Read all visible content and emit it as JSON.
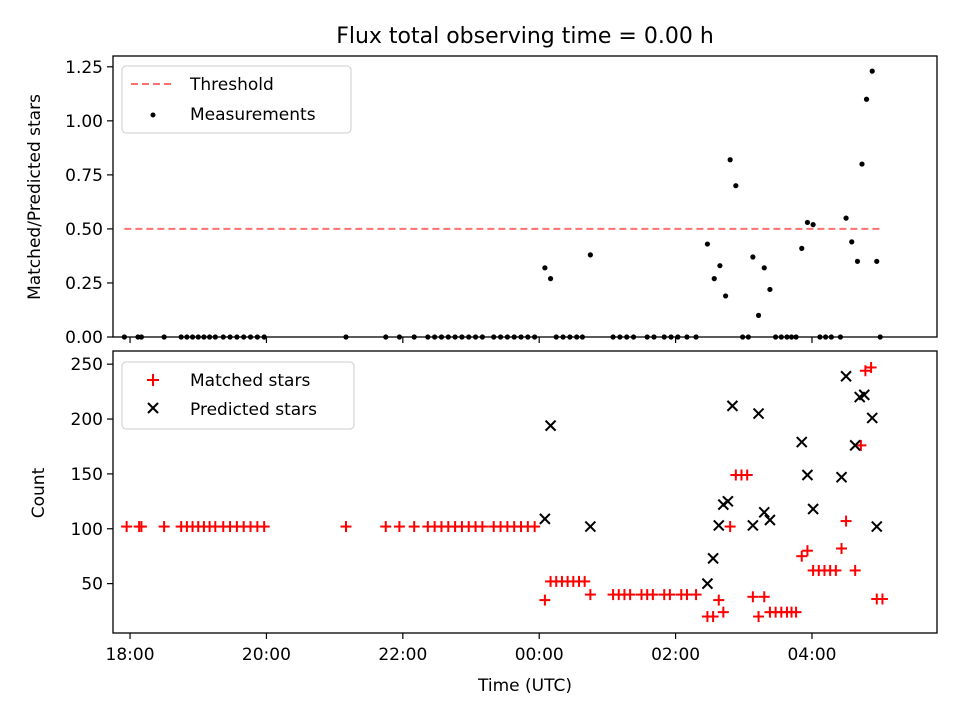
{
  "title": "Flux total observing time = 0.00 h",
  "xlabel": "Time (UTC)",
  "chart_data": [
    {
      "type": "scatter",
      "ylabel": "Matched/Predicted stars",
      "ylim": [
        0,
        1.3
      ],
      "yticks": [
        "0.00",
        "0.25",
        "0.50",
        "0.75",
        "1.00",
        "1.25"
      ],
      "xlim": [
        "17:45",
        "05:50"
      ],
      "legend_position": "top-left",
      "threshold": {
        "name": "Threshold",
        "value": 0.5,
        "x": [
          "17:55",
          "05:00"
        ],
        "color": "#ff7070",
        "style": "dashed"
      },
      "series": [
        {
          "name": "Measurements",
          "marker": "dot",
          "color": "#000000",
          "points": [
            [
              "17:55",
              0
            ],
            [
              "18:07",
              0
            ],
            [
              "18:10",
              0
            ],
            [
              "18:30",
              0
            ],
            [
              "18:45",
              0
            ],
            [
              "18:50",
              0
            ],
            [
              "18:55",
              0
            ],
            [
              "19:00",
              0
            ],
            [
              "19:05",
              0
            ],
            [
              "19:10",
              0
            ],
            [
              "19:15",
              0
            ],
            [
              "19:22",
              0
            ],
            [
              "19:28",
              0
            ],
            [
              "19:34",
              0
            ],
            [
              "19:40",
              0
            ],
            [
              "19:46",
              0
            ],
            [
              "19:52",
              0
            ],
            [
              "19:58",
              0
            ],
            [
              "21:10",
              0
            ],
            [
              "21:45",
              0
            ],
            [
              "21:57",
              0
            ],
            [
              "22:10",
              0
            ],
            [
              "22:22",
              0
            ],
            [
              "22:28",
              0
            ],
            [
              "22:34",
              0
            ],
            [
              "22:40",
              0
            ],
            [
              "22:46",
              0
            ],
            [
              "22:52",
              0
            ],
            [
              "22:58",
              0
            ],
            [
              "23:04",
              0
            ],
            [
              "23:10",
              0
            ],
            [
              "23:20",
              0
            ],
            [
              "23:26",
              0
            ],
            [
              "23:32",
              0
            ],
            [
              "23:38",
              0
            ],
            [
              "23:44",
              0
            ],
            [
              "23:50",
              0
            ],
            [
              "23:56",
              0
            ],
            [
              "00:05",
              0.32
            ],
            [
              "00:10",
              0.27
            ],
            [
              "00:15",
              0
            ],
            [
              "00:21",
              0
            ],
            [
              "00:27",
              0
            ],
            [
              "00:33",
              0
            ],
            [
              "00:38",
              0
            ],
            [
              "00:45",
              0.38
            ],
            [
              "01:05",
              0
            ],
            [
              "01:11",
              0
            ],
            [
              "01:17",
              0
            ],
            [
              "01:23",
              0
            ],
            [
              "01:35",
              0
            ],
            [
              "01:41",
              0
            ],
            [
              "01:50",
              0
            ],
            [
              "01:56",
              0
            ],
            [
              "02:02",
              0
            ],
            [
              "02:10",
              0
            ],
            [
              "02:18",
              0
            ],
            [
              "02:28",
              0.43
            ],
            [
              "02:34",
              0.27
            ],
            [
              "02:39",
              0.33
            ],
            [
              "02:44",
              0.19
            ],
            [
              "02:48",
              0.82
            ],
            [
              "02:53",
              0.7
            ],
            [
              "02:59",
              0
            ],
            [
              "03:04",
              0
            ],
            [
              "03:08",
              0.37
            ],
            [
              "03:13",
              0.1
            ],
            [
              "03:18",
              0.32
            ],
            [
              "03:23",
              0.22
            ],
            [
              "03:28",
              0
            ],
            [
              "03:33",
              0
            ],
            [
              "03:38",
              0
            ],
            [
              "03:42",
              0
            ],
            [
              "03:46",
              0
            ],
            [
              "03:51",
              0.41
            ],
            [
              "03:56",
              0.53
            ],
            [
              "04:01",
              0.52
            ],
            [
              "04:07",
              0
            ],
            [
              "04:12",
              0
            ],
            [
              "04:17",
              0
            ],
            [
              "04:25",
              0
            ],
            [
              "04:30",
              0.55
            ],
            [
              "04:35",
              0.44
            ],
            [
              "04:40",
              0.35
            ],
            [
              "04:44",
              0.8
            ],
            [
              "04:48",
              1.1
            ],
            [
              "04:53",
              1.23
            ],
            [
              "04:57",
              0.35
            ],
            [
              "05:00",
              0
            ]
          ]
        }
      ]
    },
    {
      "type": "scatter",
      "ylabel": "Count",
      "ylim": [
        5,
        262
      ],
      "yticks": [
        "50",
        "100",
        "150",
        "200",
        "250"
      ],
      "xticks": [
        "18:00",
        "20:00",
        "22:00",
        "00:00",
        "02:00",
        "04:00"
      ],
      "xlim": [
        "17:45",
        "05:50"
      ],
      "legend_position": "top-left",
      "series": [
        {
          "name": "Matched stars",
          "marker": "plus",
          "color": "#ff0000",
          "points": [
            [
              "17:57",
              102
            ],
            [
              "18:08",
              102
            ],
            [
              "18:10",
              102
            ],
            [
              "18:30",
              102
            ],
            [
              "18:45",
              102
            ],
            [
              "18:50",
              102
            ],
            [
              "18:55",
              102
            ],
            [
              "19:00",
              102
            ],
            [
              "19:05",
              102
            ],
            [
              "19:10",
              102
            ],
            [
              "19:15",
              102
            ],
            [
              "19:22",
              102
            ],
            [
              "19:28",
              102
            ],
            [
              "19:34",
              102
            ],
            [
              "19:40",
              102
            ],
            [
              "19:46",
              102
            ],
            [
              "19:52",
              102
            ],
            [
              "19:58",
              102
            ],
            [
              "21:10",
              102
            ],
            [
              "21:45",
              102
            ],
            [
              "21:57",
              102
            ],
            [
              "22:10",
              102
            ],
            [
              "22:22",
              102
            ],
            [
              "22:28",
              102
            ],
            [
              "22:34",
              102
            ],
            [
              "22:40",
              102
            ],
            [
              "22:46",
              102
            ],
            [
              "22:52",
              102
            ],
            [
              "22:58",
              102
            ],
            [
              "23:04",
              102
            ],
            [
              "23:10",
              102
            ],
            [
              "23:20",
              102
            ],
            [
              "23:26",
              102
            ],
            [
              "23:32",
              102
            ],
            [
              "23:38",
              102
            ],
            [
              "23:44",
              102
            ],
            [
              "23:50",
              102
            ],
            [
              "23:56",
              102
            ],
            [
              "00:05",
              35
            ],
            [
              "00:10",
              52
            ],
            [
              "00:15",
              52
            ],
            [
              "00:20",
              52
            ],
            [
              "00:25",
              52
            ],
            [
              "00:30",
              52
            ],
            [
              "00:35",
              52
            ],
            [
              "00:40",
              52
            ],
            [
              "00:45",
              40
            ],
            [
              "01:05",
              40
            ],
            [
              "01:10",
              40
            ],
            [
              "01:15",
              40
            ],
            [
              "01:20",
              40
            ],
            [
              "01:30",
              40
            ],
            [
              "01:35",
              40
            ],
            [
              "01:40",
              40
            ],
            [
              "01:50",
              40
            ],
            [
              "01:55",
              40
            ],
            [
              "02:05",
              40
            ],
            [
              "02:10",
              40
            ],
            [
              "02:18",
              40
            ],
            [
              "02:28",
              20
            ],
            [
              "02:33",
              20
            ],
            [
              "02:38",
              35
            ],
            [
              "02:42",
              24
            ],
            [
              "02:48",
              102
            ],
            [
              "02:53",
              149
            ],
            [
              "02:58",
              149
            ],
            [
              "03:03",
              149
            ],
            [
              "03:08",
              38
            ],
            [
              "03:13",
              20
            ],
            [
              "03:18",
              38
            ],
            [
              "03:23",
              24
            ],
            [
              "03:28",
              24
            ],
            [
              "03:33",
              24
            ],
            [
              "03:38",
              24
            ],
            [
              "03:42",
              24
            ],
            [
              "03:46",
              24
            ],
            [
              "03:51",
              75
            ],
            [
              "03:56",
              80
            ],
            [
              "04:01",
              62
            ],
            [
              "04:06",
              62
            ],
            [
              "04:11",
              62
            ],
            [
              "04:16",
              62
            ],
            [
              "04:21",
              62
            ],
            [
              "04:26",
              82
            ],
            [
              "04:30",
              107
            ],
            [
              "04:38",
              62
            ],
            [
              "04:43",
              176
            ],
            [
              "04:47",
              244
            ],
            [
              "04:52",
              247
            ],
            [
              "04:57",
              36
            ],
            [
              "05:02",
              36
            ]
          ]
        },
        {
          "name": "Predicted stars",
          "marker": "x",
          "color": "#000000",
          "points": [
            [
              "00:05",
              109
            ],
            [
              "00:10",
              194
            ],
            [
              "00:45",
              102
            ],
            [
              "02:28",
              50
            ],
            [
              "02:33",
              73
            ],
            [
              "02:38",
              103
            ],
            [
              "02:42",
              122
            ],
            [
              "02:46",
              125
            ],
            [
              "02:50",
              212
            ],
            [
              "03:08",
              103
            ],
            [
              "03:13",
              205
            ],
            [
              "03:18",
              115
            ],
            [
              "03:23",
              108
            ],
            [
              "03:51",
              179
            ],
            [
              "03:56",
              149
            ],
            [
              "04:01",
              118
            ],
            [
              "04:26",
              147
            ],
            [
              "04:30",
              239
            ],
            [
              "04:38",
              176
            ],
            [
              "04:42",
              220
            ],
            [
              "04:46",
              222
            ],
            [
              "04:53",
              201
            ],
            [
              "04:57",
              102
            ]
          ]
        }
      ]
    }
  ]
}
